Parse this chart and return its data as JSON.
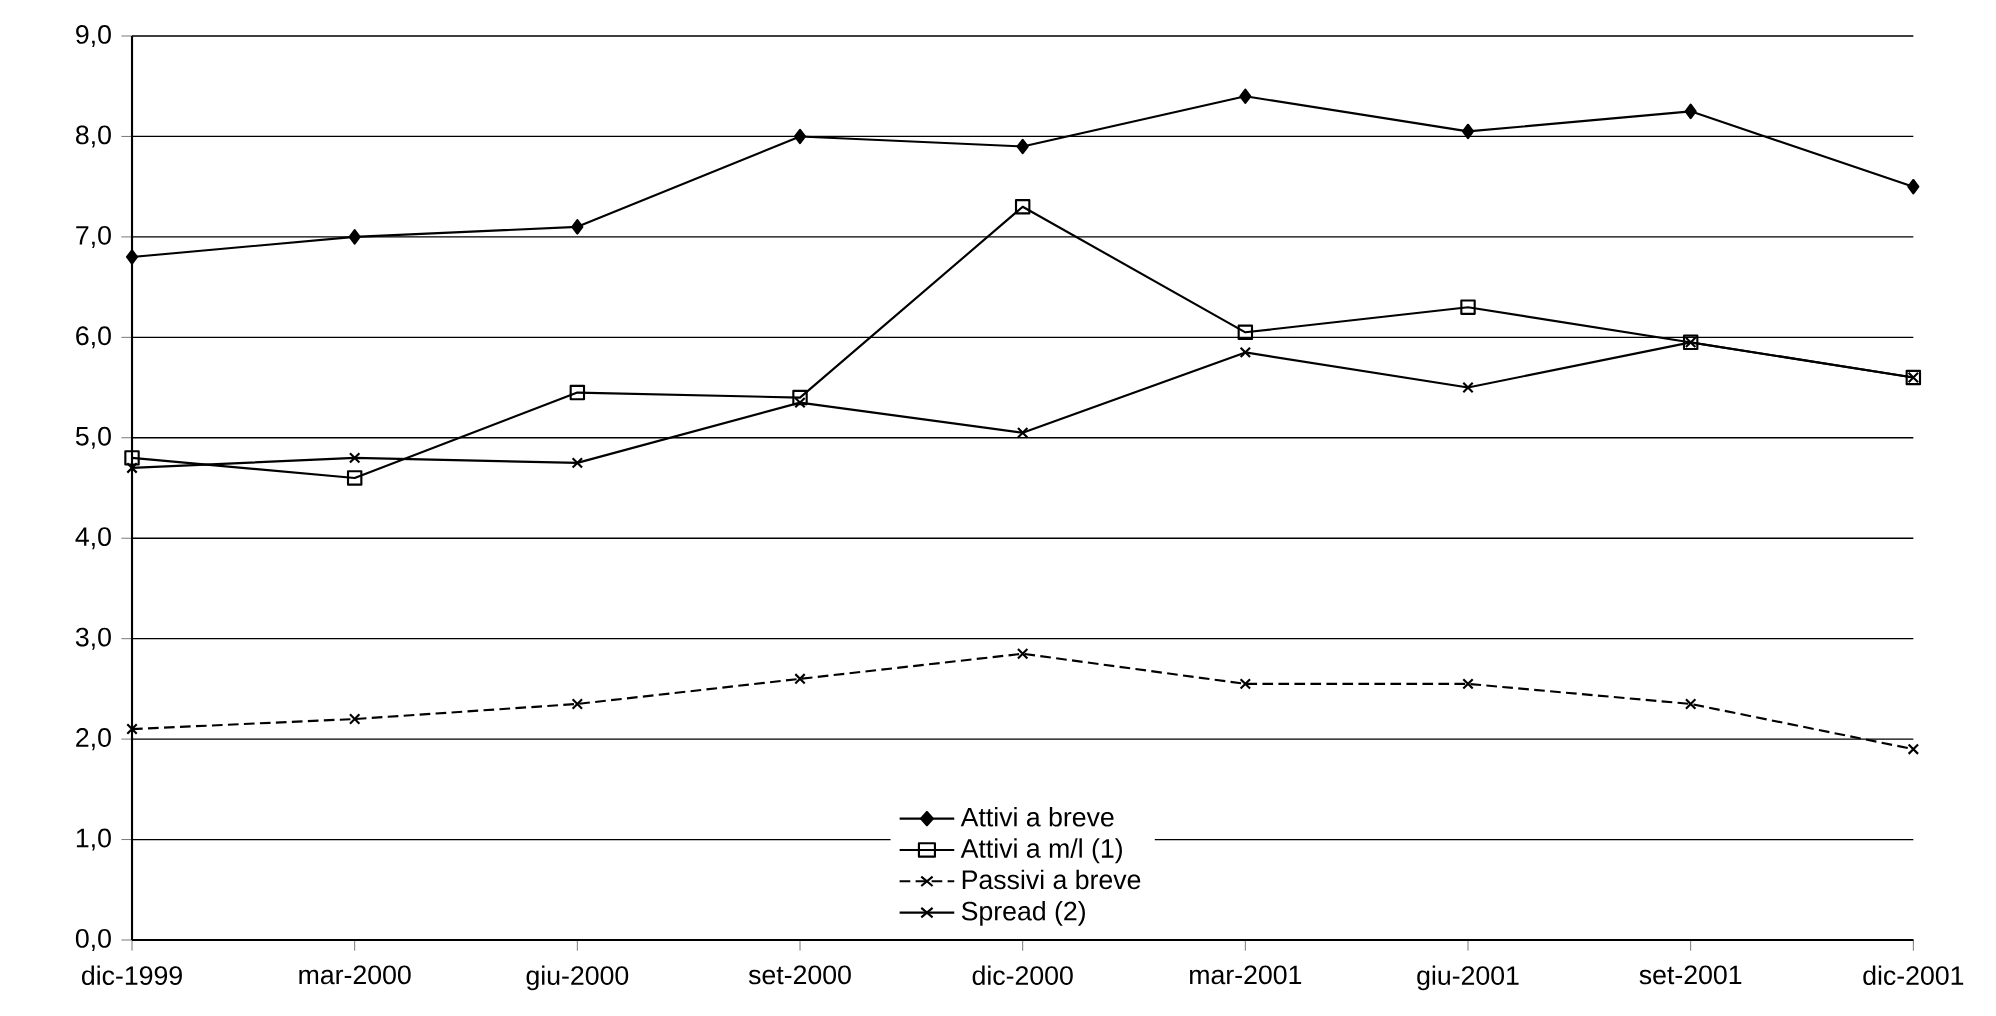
{
  "chart_data": {
    "type": "line",
    "categories": [
      "dic-1999",
      "mar-2000",
      "giu-2000",
      "set-2000",
      "dic-2000",
      "mar-2001",
      "giu-2001",
      "set-2001",
      "dic-2001"
    ],
    "series": [
      {
        "name": "Attivi a breve",
        "color": "#000000",
        "marker": "diamond",
        "line_style": "solid",
        "values": [
          6.8,
          7.0,
          7.1,
          8.0,
          7.9,
          8.4,
          8.05,
          8.25,
          7.5
        ]
      },
      {
        "name": "Attivi a m/l (1)",
        "color": "#000000",
        "marker": "square",
        "line_style": "solid",
        "values": [
          4.8,
          4.6,
          5.45,
          5.4,
          7.3,
          6.05,
          6.3,
          5.95,
          5.6
        ]
      },
      {
        "name": "Passivi a breve",
        "color": "#000000",
        "marker": "cross",
        "line_style": "dashed",
        "values": [
          2.1,
          2.2,
          2.35,
          2.6,
          2.85,
          2.55,
          2.55,
          2.35,
          1.9
        ]
      },
      {
        "name": "Spread (2)",
        "color": "#000000",
        "marker": "cross",
        "line_style": "solid",
        "values": [
          4.7,
          4.8,
          4.75,
          5.35,
          5.05,
          5.85,
          5.5,
          5.95,
          5.6
        ]
      }
    ],
    "ylim": [
      0,
      9
    ],
    "yticks": [
      {
        "value": 0,
        "label": "0,0"
      },
      {
        "value": 1,
        "label": "1,0"
      },
      {
        "value": 2,
        "label": "2,0"
      },
      {
        "value": 3,
        "label": "3,0"
      },
      {
        "value": 4,
        "label": "4,0"
      },
      {
        "value": 5,
        "label": "5,0"
      },
      {
        "value": 6,
        "label": "6,0"
      },
      {
        "value": 7,
        "label": "7,0"
      },
      {
        "value": 8,
        "label": "8,0"
      },
      {
        "value": 9,
        "label": "9,0"
      }
    ],
    "grid": "y",
    "legend": "bottom"
  }
}
